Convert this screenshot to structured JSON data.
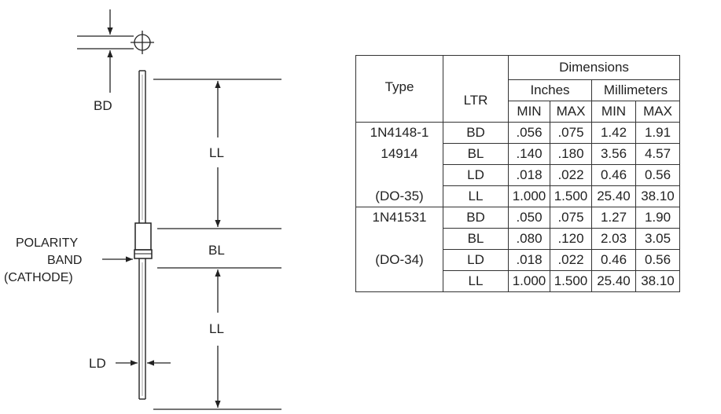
{
  "diagram": {
    "labels": {
      "bd": "BD",
      "ll_top": "LL",
      "bl": "BL",
      "ll_bottom": "LL",
      "ld": "LD",
      "polarity_line1": "POLARITY",
      "polarity_line2": "BAND",
      "polarity_line3": "(CATHODE)"
    }
  },
  "table": {
    "type_header": "Type",
    "ltr_header": "LTR",
    "dimensions_header": "Dimensions",
    "inches_header": "Inches",
    "mm_header": "Millimeters",
    "min_label": "MIN",
    "max_label": "MAX",
    "groups": [
      {
        "type_lines": [
          "1N4148-1",
          "14914",
          "",
          "(DO-35)"
        ],
        "rows": [
          {
            "ltr": "BD",
            "in_min": ".056",
            "in_max": ".075",
            "mm_min": "1.42",
            "mm_max": "1.91"
          },
          {
            "ltr": "BL",
            "in_min": ".140",
            "in_max": ".180",
            "mm_min": "3.56",
            "mm_max": "4.57"
          },
          {
            "ltr": "LD",
            "in_min": ".018",
            "in_max": ".022",
            "mm_min": "0.46",
            "mm_max": "0.56"
          },
          {
            "ltr": "LL",
            "in_min": "1.000",
            "in_max": "1.500",
            "mm_min": "25.40",
            "mm_max": "38.10"
          }
        ]
      },
      {
        "type_lines": [
          "1N41531",
          "",
          "(DO-34)",
          ""
        ],
        "rows": [
          {
            "ltr": "BD",
            "in_min": ".050",
            "in_max": ".075",
            "mm_min": "1.27",
            "mm_max": "1.90"
          },
          {
            "ltr": "BL",
            "in_min": ".080",
            "in_max": ".120",
            "mm_min": "2.03",
            "mm_max": "3.05"
          },
          {
            "ltr": "LD",
            "in_min": ".018",
            "in_max": ".022",
            "mm_min": "0.46",
            "mm_max": "0.56"
          },
          {
            "ltr": "LL",
            "in_min": "1.000",
            "in_max": "1.500",
            "mm_min": "25.40",
            "mm_max": "38.10"
          }
        ]
      }
    ]
  }
}
